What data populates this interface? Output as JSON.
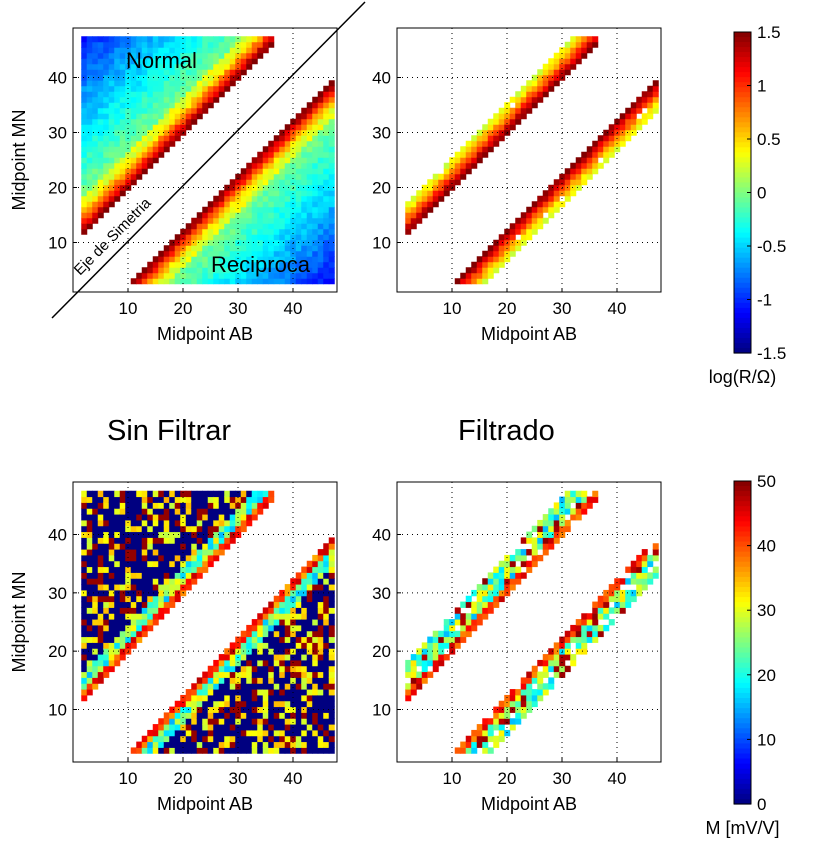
{
  "section_titles": {
    "left": "Sin Filtrar",
    "right": "Filtrado"
  },
  "top_annotations": {
    "normal": "Normal",
    "reciprocal": "Reciproca",
    "axis": "Eje de Simetria"
  },
  "colormap": "jet",
  "chart_data": [
    {
      "type": "heatmap",
      "id": "top-left",
      "xlabel": "Midpoint AB",
      "ylabel": "Midpoint MN",
      "xlim": [
        0,
        48
      ],
      "ylim": [
        1,
        49
      ],
      "xticks": [
        10,
        20,
        30,
        40
      ],
      "yticks": [
        10,
        20,
        30,
        40
      ],
      "grid": true,
      "values": "log(R/Ω) resistance, range -1.5 to 1.5",
      "upper_triangle_x": [
        2,
        36
      ],
      "lower_triangle_x": [
        10,
        47
      ]
    },
    {
      "type": "heatmap",
      "id": "top-right",
      "xlabel": "Midpoint AB",
      "ylabel": "",
      "xlim": [
        0,
        48
      ],
      "ylim": [
        1,
        49
      ],
      "xticks": [
        10,
        20,
        30,
        40
      ],
      "yticks": [
        10,
        20,
        30,
        40
      ],
      "grid": true,
      "values": "log(R/Ω) resistance after filtering"
    },
    {
      "type": "heatmap",
      "id": "bottom-left",
      "xlabel": "Midpoint AB",
      "ylabel": "Midpoint MN",
      "xlim": [
        0,
        48
      ],
      "ylim": [
        1,
        49
      ],
      "xticks": [
        10,
        20,
        30,
        40
      ],
      "yticks": [
        10,
        20,
        30,
        40
      ],
      "grid": true,
      "values": "M [mV/V] chargeability, range 0 to 50"
    },
    {
      "type": "heatmap",
      "id": "bottom-right",
      "xlabel": "Midpoint AB",
      "ylabel": "",
      "xlim": [
        0,
        48
      ],
      "ylim": [
        1,
        49
      ],
      "xticks": [
        10,
        20,
        30,
        40
      ],
      "yticks": [
        10,
        20,
        30,
        40
      ],
      "grid": true,
      "values": "M [mV/V] after filtering"
    }
  ],
  "colorbars": [
    {
      "id": "resistance",
      "label": "log(R/Ω)",
      "range": [
        -1.5,
        1.5
      ],
      "ticks": [
        "1.5",
        "1",
        "0.5",
        "0",
        "-0.5",
        "-1",
        "-1.5"
      ]
    },
    {
      "id": "chargeability",
      "label": "M [mV/V]",
      "range": [
        0,
        50
      ],
      "ticks": [
        "50",
        "40",
        "30",
        "20",
        "10",
        "0"
      ]
    }
  ]
}
